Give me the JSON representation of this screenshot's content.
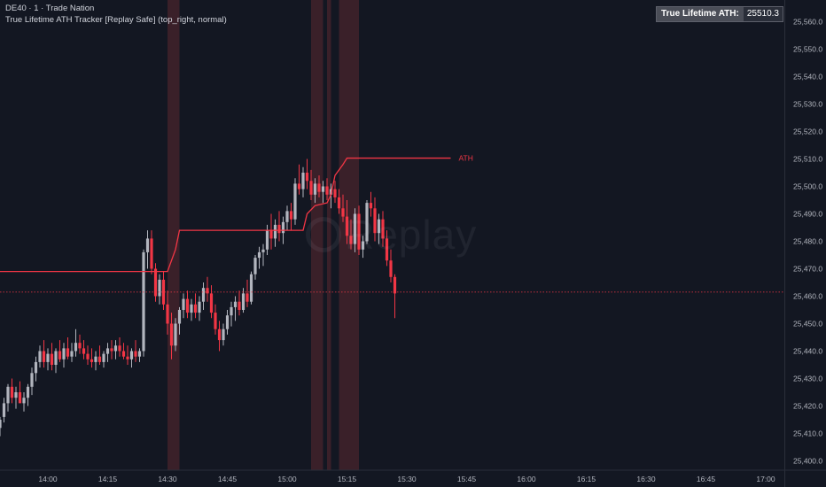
{
  "legend": {
    "symbol_line": "DE40 · 1 · Trade Nation",
    "indicator_line": "True Lifetime ATH Tracker [Replay Safe] (top_right, normal)"
  },
  "ath_box": {
    "label": "True Lifetime ATH:",
    "value": "25510.3"
  },
  "watermark": {
    "text": "Replay",
    "icon": "replay-play-icon"
  },
  "colors": {
    "background": "#131722",
    "up_candle": "#b2b5be",
    "down_candle": "#f23645",
    "ath_line": "#f23645",
    "highlight_band": "#3a2029",
    "axis_text": "#b2b5be"
  },
  "chart_data": {
    "type": "candlestick",
    "title": "",
    "xlabel": "",
    "ylabel": "",
    "x_range": [
      "13:48",
      "17:00"
    ],
    "ylim": [
      25397,
      25568
    ],
    "y_ticks": [
      "25,400.0",
      "25,410.0",
      "25,420.0",
      "25,430.0",
      "25,440.0",
      "25,450.0",
      "25,460.0",
      "25,470.0",
      "25,480.0",
      "25,490.0",
      "25,500.0",
      "25,510.0",
      "25,520.0",
      "25,530.0",
      "25,540.0",
      "25,550.0",
      "25,560.0"
    ],
    "y_tick_values": [
      25400,
      25410,
      25420,
      25430,
      25440,
      25450,
      25460,
      25470,
      25480,
      25490,
      25500,
      25510,
      25520,
      25530,
      25540,
      25550,
      25560
    ],
    "x_ticks": [
      "14:00",
      "14:15",
      "14:30",
      "14:45",
      "15:00",
      "15:15",
      "15:30",
      "15:45",
      "16:00",
      "16:15",
      "16:30",
      "16:45",
      "17:00"
    ],
    "current_price": 25461.5,
    "ath_label": "ATH",
    "ath_line": [
      {
        "t": "13:48",
        "v": 25469
      },
      {
        "t": "14:30",
        "v": 25469
      },
      {
        "t": "14:32",
        "v": 25477
      },
      {
        "t": "14:33",
        "v": 25484
      },
      {
        "t": "15:04",
        "v": 25484
      },
      {
        "t": "15:05",
        "v": 25490
      },
      {
        "t": "15:07",
        "v": 25493
      },
      {
        "t": "15:10",
        "v": 25494
      },
      {
        "t": "15:11",
        "v": 25497
      },
      {
        "t": "15:12",
        "v": 25504
      },
      {
        "t": "15:14",
        "v": 25508
      },
      {
        "t": "15:15",
        "v": 25510.3
      },
      {
        "t": "15:41",
        "v": 25510.3
      }
    ],
    "highlight_bands": [
      {
        "start": "14:30",
        "end": "14:33"
      },
      {
        "start": "15:06",
        "end": "15:09"
      },
      {
        "start": "15:10",
        "end": "15:11"
      },
      {
        "start": "15:13",
        "end": "15:14"
      },
      {
        "start": "15:14",
        "end": "15:18"
      }
    ],
    "candles": [
      {
        "o": 25412,
        "h": 25416,
        "l": 25409,
        "c": 25415
      },
      {
        "o": 25416,
        "h": 25423,
        "l": 25414,
        "c": 25421
      },
      {
        "o": 25421,
        "h": 25428,
        "l": 25418,
        "c": 25427
      },
      {
        "o": 25427,
        "h": 25430,
        "l": 25421,
        "c": 25423
      },
      {
        "o": 25423,
        "h": 25427,
        "l": 25419,
        "c": 25425
      },
      {
        "o": 25425,
        "h": 25429,
        "l": 25422,
        "c": 25421
      },
      {
        "o": 25421,
        "h": 25425,
        "l": 25418,
        "c": 25423
      },
      {
        "o": 25423,
        "h": 25428,
        "l": 25420,
        "c": 25427
      },
      {
        "o": 25427,
        "h": 25434,
        "l": 25424,
        "c": 25432
      },
      {
        "o": 25432,
        "h": 25438,
        "l": 25429,
        "c": 25436
      },
      {
        "o": 25436,
        "h": 25442,
        "l": 25434,
        "c": 25440
      },
      {
        "o": 25440,
        "h": 25444,
        "l": 25434,
        "c": 25436
      },
      {
        "o": 25436,
        "h": 25441,
        "l": 25433,
        "c": 25439
      },
      {
        "o": 25439,
        "h": 25443,
        "l": 25433,
        "c": 25435
      },
      {
        "o": 25435,
        "h": 25441,
        "l": 25432,
        "c": 25440
      },
      {
        "o": 25440,
        "h": 25444,
        "l": 25436,
        "c": 25437
      },
      {
        "o": 25437,
        "h": 25443,
        "l": 25434,
        "c": 25441
      },
      {
        "o": 25441,
        "h": 25445,
        "l": 25437,
        "c": 25438
      },
      {
        "o": 25438,
        "h": 25443,
        "l": 25436,
        "c": 25440
      },
      {
        "o": 25440,
        "h": 25448,
        "l": 25438,
        "c": 25443
      },
      {
        "o": 25443,
        "h": 25446,
        "l": 25439,
        "c": 25441
      },
      {
        "o": 25441,
        "h": 25444,
        "l": 25437,
        "c": 25439
      },
      {
        "o": 25439,
        "h": 25442,
        "l": 25435,
        "c": 25437
      },
      {
        "o": 25437,
        "h": 25441,
        "l": 25434,
        "c": 25436
      },
      {
        "o": 25436,
        "h": 25440,
        "l": 25433,
        "c": 25438
      },
      {
        "o": 25438,
        "h": 25442,
        "l": 25435,
        "c": 25436
      },
      {
        "o": 25436,
        "h": 25440,
        "l": 25434,
        "c": 25439
      },
      {
        "o": 25439,
        "h": 25443,
        "l": 25436,
        "c": 25441
      },
      {
        "o": 25441,
        "h": 25444,
        "l": 25437,
        "c": 25440
      },
      {
        "o": 25440,
        "h": 25444,
        "l": 25437,
        "c": 25442
      },
      {
        "o": 25442,
        "h": 25445,
        "l": 25438,
        "c": 25440
      },
      {
        "o": 25440,
        "h": 25443,
        "l": 25437,
        "c": 25438
      },
      {
        "o": 25438,
        "h": 25442,
        "l": 25435,
        "c": 25437
      },
      {
        "o": 25437,
        "h": 25441,
        "l": 25434,
        "c": 25440
      },
      {
        "o": 25440,
        "h": 25444,
        "l": 25436,
        "c": 25438
      },
      {
        "o": 25438,
        "h": 25441,
        "l": 25436,
        "c": 25440
      },
      {
        "o": 25440,
        "h": 25477,
        "l": 25438,
        "c": 25476
      },
      {
        "o": 25476,
        "h": 25484,
        "l": 25470,
        "c": 25481
      },
      {
        "o": 25481,
        "h": 25484,
        "l": 25468,
        "c": 25470
      },
      {
        "o": 25470,
        "h": 25472,
        "l": 25458,
        "c": 25460
      },
      {
        "o": 25460,
        "h": 25468,
        "l": 25457,
        "c": 25466
      },
      {
        "o": 25466,
        "h": 25469,
        "l": 25455,
        "c": 25457
      },
      {
        "o": 25457,
        "h": 25462,
        "l": 25446,
        "c": 25450
      },
      {
        "o": 25450,
        "h": 25454,
        "l": 25437,
        "c": 25442
      },
      {
        "o": 25442,
        "h": 25452,
        "l": 25440,
        "c": 25450
      },
      {
        "o": 25450,
        "h": 25456,
        "l": 25446,
        "c": 25455
      },
      {
        "o": 25455,
        "h": 25461,
        "l": 25452,
        "c": 25459
      },
      {
        "o": 25459,
        "h": 25462,
        "l": 25452,
        "c": 25454
      },
      {
        "o": 25454,
        "h": 25459,
        "l": 25451,
        "c": 25457
      },
      {
        "o": 25457,
        "h": 25461,
        "l": 25452,
        "c": 25454
      },
      {
        "o": 25454,
        "h": 25460,
        "l": 25451,
        "c": 25458
      },
      {
        "o": 25458,
        "h": 25465,
        "l": 25455,
        "c": 25463
      },
      {
        "o": 25463,
        "h": 25467,
        "l": 25458,
        "c": 25461
      },
      {
        "o": 25461,
        "h": 25464,
        "l": 25452,
        "c": 25454
      },
      {
        "o": 25454,
        "h": 25457,
        "l": 25446,
        "c": 25448
      },
      {
        "o": 25448,
        "h": 25451,
        "l": 25440,
        "c": 25444
      },
      {
        "o": 25444,
        "h": 25450,
        "l": 25442,
        "c": 25448
      },
      {
        "o": 25448,
        "h": 25455,
        "l": 25446,
        "c": 25453
      },
      {
        "o": 25453,
        "h": 25458,
        "l": 25449,
        "c": 25456
      },
      {
        "o": 25456,
        "h": 25460,
        "l": 25451,
        "c": 25458
      },
      {
        "o": 25458,
        "h": 25462,
        "l": 25453,
        "c": 25455
      },
      {
        "o": 25455,
        "h": 25463,
        "l": 25454,
        "c": 25461
      },
      {
        "o": 25461,
        "h": 25466,
        "l": 25456,
        "c": 25458
      },
      {
        "o": 25458,
        "h": 25469,
        "l": 25457,
        "c": 25468
      },
      {
        "o": 25468,
        "h": 25475,
        "l": 25466,
        "c": 25474
      },
      {
        "o": 25474,
        "h": 25478,
        "l": 25470,
        "c": 25476
      },
      {
        "o": 25476,
        "h": 25479,
        "l": 25471,
        "c": 25477
      },
      {
        "o": 25477,
        "h": 25486,
        "l": 25475,
        "c": 25484
      },
      {
        "o": 25484,
        "h": 25490,
        "l": 25477,
        "c": 25481
      },
      {
        "o": 25481,
        "h": 25488,
        "l": 25478,
        "c": 25486
      },
      {
        "o": 25486,
        "h": 25491,
        "l": 25480,
        "c": 25483
      },
      {
        "o": 25483,
        "h": 25489,
        "l": 25479,
        "c": 25487
      },
      {
        "o": 25487,
        "h": 25493,
        "l": 25484,
        "c": 25491
      },
      {
        "o": 25491,
        "h": 25494,
        "l": 25484,
        "c": 25488
      },
      {
        "o": 25488,
        "h": 25503,
        "l": 25486,
        "c": 25501
      },
      {
        "o": 25501,
        "h": 25508,
        "l": 25497,
        "c": 25499
      },
      {
        "o": 25499,
        "h": 25507,
        "l": 25496,
        "c": 25505
      },
      {
        "o": 25505,
        "h": 25510,
        "l": 25499,
        "c": 25502
      },
      {
        "o": 25502,
        "h": 25506,
        "l": 25495,
        "c": 25497
      },
      {
        "o": 25497,
        "h": 25503,
        "l": 25494,
        "c": 25501
      },
      {
        "o": 25501,
        "h": 25504,
        "l": 25496,
        "c": 25498
      },
      {
        "o": 25498,
        "h": 25502,
        "l": 25494,
        "c": 25500
      },
      {
        "o": 25500,
        "h": 25503,
        "l": 25495,
        "c": 25497
      },
      {
        "o": 25497,
        "h": 25501,
        "l": 25492,
        "c": 25499
      },
      {
        "o": 25499,
        "h": 25502,
        "l": 25494,
        "c": 25496
      },
      {
        "o": 25496,
        "h": 25499,
        "l": 25490,
        "c": 25492
      },
      {
        "o": 25492,
        "h": 25497,
        "l": 25487,
        "c": 25489
      },
      {
        "o": 25489,
        "h": 25495,
        "l": 25479,
        "c": 25482
      },
      {
        "o": 25482,
        "h": 25488,
        "l": 25477,
        "c": 25479
      },
      {
        "o": 25479,
        "h": 25492,
        "l": 25476,
        "c": 25490
      },
      {
        "o": 25490,
        "h": 25493,
        "l": 25475,
        "c": 25477
      },
      {
        "o": 25477,
        "h": 25482,
        "l": 25474,
        "c": 25480
      },
      {
        "o": 25480,
        "h": 25495,
        "l": 25479,
        "c": 25494
      },
      {
        "o": 25494,
        "h": 25498,
        "l": 25489,
        "c": 25492
      },
      {
        "o": 25492,
        "h": 25496,
        "l": 25480,
        "c": 25483
      },
      {
        "o": 25483,
        "h": 25490,
        "l": 25479,
        "c": 25488
      },
      {
        "o": 25488,
        "h": 25491,
        "l": 25478,
        "c": 25481
      },
      {
        "o": 25481,
        "h": 25484,
        "l": 25471,
        "c": 25473
      },
      {
        "o": 25473,
        "h": 25477,
        "l": 25465,
        "c": 25467
      },
      {
        "o": 25467,
        "h": 25468,
        "l": 25452,
        "c": 25461
      }
    ]
  }
}
